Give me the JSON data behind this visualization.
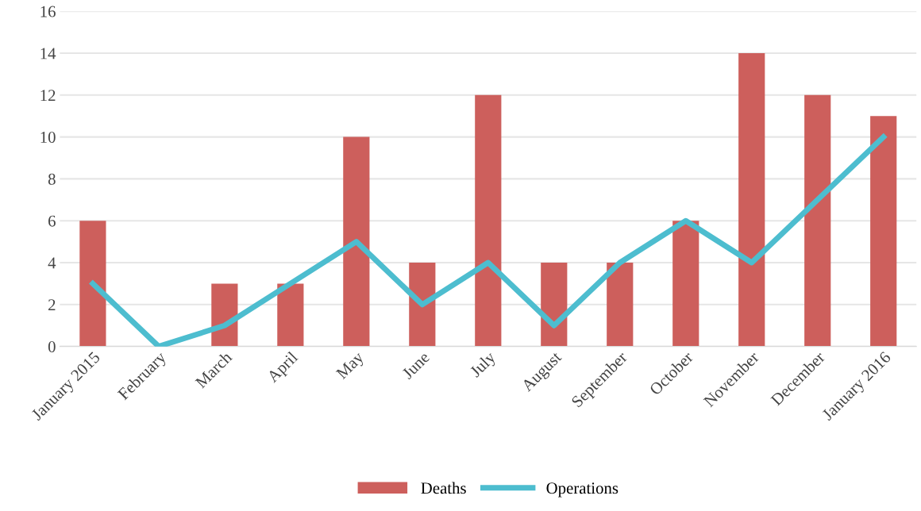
{
  "chart_data": {
    "type": "bar",
    "categories": [
      "January 2015",
      "February",
      "March",
      "April",
      "May",
      "June",
      "July",
      "August",
      "September",
      "October",
      "November",
      "December",
      "January 2016"
    ],
    "series": [
      {
        "name": "Deaths",
        "color": "#cd5f5c",
        "values": [
          6,
          0,
          3,
          3,
          10,
          4,
          12,
          4,
          4,
          6,
          14,
          12,
          11
        ]
      },
      {
        "name": "Operations",
        "type": "line",
        "color": "#4dbdcf",
        "values": [
          3,
          0,
          1,
          3,
          5,
          2,
          4,
          1,
          4,
          6,
          4,
          7,
          10
        ]
      }
    ],
    "ylim": [
      0,
      16
    ],
    "yticks": [
      0,
      2,
      4,
      6,
      8,
      10,
      12,
      14,
      16
    ],
    "grid": "y",
    "legend": "bottom"
  }
}
